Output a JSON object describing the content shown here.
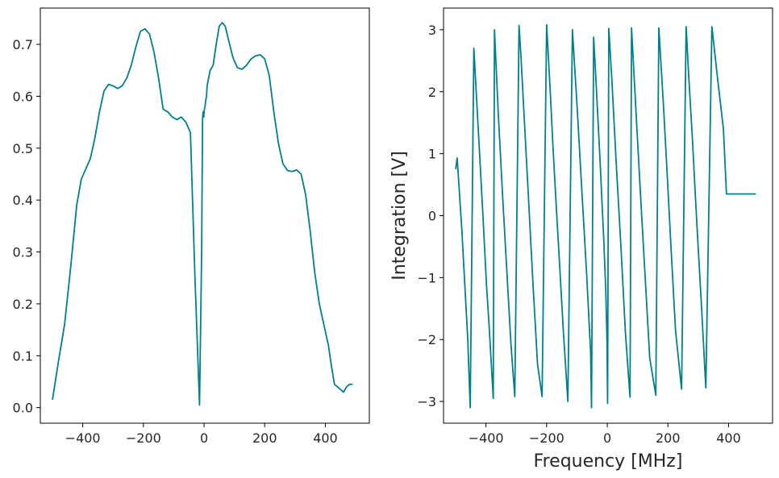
{
  "chart_data": [
    {
      "type": "line",
      "title": "",
      "xlabel": "",
      "ylabel": "",
      "xlim": [
        -540,
        545
      ],
      "ylim": [
        -0.03,
        0.77
      ],
      "xticks": [
        -400,
        -200,
        0,
        200,
        400
      ],
      "xtick_labels": [
        "−400",
        "−200",
        "0",
        "200",
        "400"
      ],
      "yticks": [
        0.0,
        0.1,
        0.2,
        0.3,
        0.4,
        0.5,
        0.6,
        0.7
      ],
      "ytick_labels": [
        "0.0",
        "0.1",
        "0.2",
        "0.3",
        "0.4",
        "0.5",
        "0.6",
        "0.7"
      ],
      "grid": false,
      "color": "#00808f",
      "series": [
        {
          "x": [
            -500,
            -480,
            -460,
            -440,
            -420,
            -405,
            -390,
            -375,
            -360,
            -345,
            -330,
            -315,
            -300,
            -285,
            -270,
            -255,
            -240,
            -225,
            -210,
            -195,
            -180,
            -165,
            -150,
            -135,
            -120,
            -105,
            -90,
            -75,
            -60,
            -45,
            -30,
            -15,
            -8,
            -5,
            -4,
            -3,
            -1,
            0,
            1,
            3,
            5,
            8,
            10,
            20,
            30,
            40,
            50,
            60,
            70,
            80,
            95,
            110,
            125,
            140,
            155,
            170,
            185,
            200,
            215,
            230,
            245,
            260,
            275,
            290,
            305,
            320,
            335,
            350,
            365,
            380,
            395,
            410,
            420,
            430,
            440,
            450,
            460,
            470,
            480,
            490
          ],
          "y": [
            0.015,
            0.09,
            0.16,
            0.27,
            0.39,
            0.44,
            0.46,
            0.48,
            0.52,
            0.57,
            0.61,
            0.623,
            0.62,
            0.615,
            0.62,
            0.635,
            0.66,
            0.695,
            0.725,
            0.73,
            0.72,
            0.685,
            0.635,
            0.575,
            0.57,
            0.56,
            0.555,
            0.56,
            0.55,
            0.53,
            0.25,
            0.005,
            0.3,
            0.555,
            0.565,
            0.57,
            0.56,
            0.57,
            0.575,
            0.58,
            0.59,
            0.6,
            0.62,
            0.65,
            0.66,
            0.7,
            0.735,
            0.742,
            0.735,
            0.71,
            0.675,
            0.655,
            0.652,
            0.66,
            0.672,
            0.678,
            0.68,
            0.672,
            0.64,
            0.57,
            0.51,
            0.47,
            0.457,
            0.455,
            0.458,
            0.45,
            0.41,
            0.34,
            0.26,
            0.2,
            0.16,
            0.12,
            0.08,
            0.045,
            0.04,
            0.035,
            0.03,
            0.04,
            0.045,
            0.045
          ]
        }
      ]
    },
    {
      "type": "line",
      "title": "",
      "xlabel": "Frequency [MHz]",
      "ylabel": "Integration [V]",
      "xlim": [
        -540,
        545
      ],
      "ylim": [
        -3.35,
        3.35
      ],
      "xticks": [
        -400,
        -200,
        0,
        200,
        400
      ],
      "xtick_labels": [
        "−400",
        "−200",
        "0",
        "200",
        "400"
      ],
      "yticks": [
        -3,
        -2,
        -1,
        0,
        1,
        2,
        3
      ],
      "ytick_labels": [
        "−3",
        "−2",
        "−1",
        "0",
        "1",
        "2",
        "3"
      ],
      "grid": false,
      "color": "#00808f",
      "series": [
        {
          "x": [
            -500,
            -495,
            -480,
            -460,
            -452,
            -440,
            -425,
            -410,
            -398,
            -390,
            -376,
            -372,
            -360,
            -345,
            -330,
            -318,
            -305,
            -291,
            -285,
            -272,
            -260,
            -245,
            -230,
            -215,
            -200,
            -188,
            -180,
            -170,
            -160,
            -145,
            -130,
            -115,
            -100,
            -85,
            -68,
            -55,
            -52,
            -45,
            -38,
            -24,
            -12,
            -5,
            -1,
            1,
            5,
            15,
            30,
            45,
            60,
            75,
            80,
            95,
            110,
            125,
            140,
            160,
            170,
            185,
            195,
            210,
            225,
            245,
            260,
            268,
            280,
            295,
            310,
            325,
            345,
            364,
            383,
            393,
            400,
            415,
            430,
            445,
            462,
            470,
            480,
            490
          ],
          "y": [
            0.75,
            0.93,
            -0.2,
            -2.0,
            -3.1,
            2.7,
            1.35,
            0.0,
            -1.15,
            -1.75,
            -2.95,
            3.0,
            1.7,
            0.3,
            -1.0,
            -2.05,
            -2.92,
            3.07,
            2.6,
            1.4,
            0.3,
            -1.1,
            -2.4,
            -2.92,
            3.08,
            2.0,
            1.2,
            0.3,
            -0.55,
            -1.85,
            -3.0,
            3.0,
            1.8,
            0.5,
            -0.95,
            -2.2,
            -3.1,
            2.88,
            2.25,
            0.9,
            -0.35,
            -1.2,
            -2.0,
            -3.03,
            3.02,
            2.2,
            0.8,
            -0.5,
            -1.9,
            -2.93,
            3.03,
            1.65,
            0.3,
            -1.0,
            -2.3,
            -2.9,
            3.03,
            1.8,
            0.9,
            -0.5,
            -1.85,
            -2.8,
            3.05,
            2.3,
            1.3,
            -0.1,
            -1.4,
            -2.78,
            3.05,
            2.2,
            1.4,
            0.35,
            0.35,
            0.35,
            0.35,
            0.35,
            0.35,
            0.35,
            0.35,
            0.35
          ]
        }
      ]
    }
  ]
}
